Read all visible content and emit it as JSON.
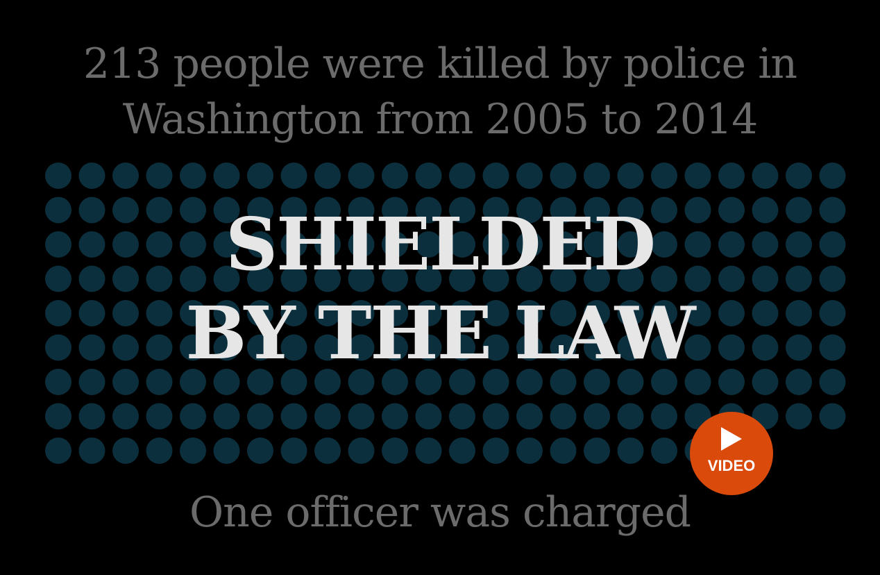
{
  "intro": {
    "line1": "213 people were killed by police in",
    "line2": "Washington from 2005 to 2014"
  },
  "headline": {
    "line1": "SHIELDED",
    "line2": "BY THE LAW"
  },
  "outro": {
    "text": "One officer was charged"
  },
  "video_button": {
    "label": "VIDEO",
    "icon": "play-icon"
  },
  "chart_data": {
    "type": "dot-grid",
    "total": 213,
    "rows": 9,
    "columns": 24,
    "dot_color": "#0c2f3d"
  },
  "colors": {
    "background": "#000000",
    "dot": "#0c2f3d",
    "subtitle": "#6b6b6b",
    "headline": "#e6e6e6",
    "video_button": "#d94a0b"
  }
}
